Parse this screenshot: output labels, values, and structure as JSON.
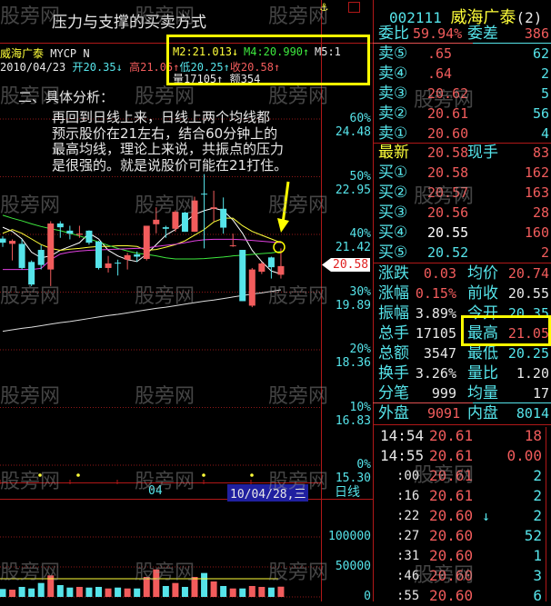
{
  "watermark": "股旁网",
  "title": "压力与支撑的买卖方式",
  "header": {
    "stock_name": "威海广泰",
    "indicator": "MYCP N",
    "m2": "M2:21.013↓",
    "m4": "M4:20.990↑",
    "m5": "M5:1",
    "date": "2010/04/23",
    "open_label": "开",
    "open": "20.35↓",
    "high_label": "高",
    "high": "21.05↑",
    "low_label": "低",
    "low": "20.25↑",
    "close_label": "收",
    "close": "20.58↑",
    "vol_label": "量",
    "vol": "17105↑",
    "amount_label": "额",
    "amount": "354"
  },
  "annotation": {
    "heading": "二、具体分析：",
    "lines": [
      "再回到日线上来，日线上两个均线都",
      "预示股价在21左右，结合60分钟上的",
      "最高均线，理论上来说，共振点的压力",
      "是很强的。就是说股价可能在21打住。"
    ]
  },
  "price_axis": [
    {
      "pct": "60%",
      "price": "24.48",
      "value": 24.48
    },
    {
      "pct": "50%",
      "price": "22.95",
      "value": 22.95
    },
    {
      "pct": "40%",
      "price": "21.42",
      "value": 21.42
    },
    {
      "pct": "30%",
      "price": "19.89",
      "value": 19.89
    },
    {
      "pct": "20%",
      "price": "18.36",
      "value": 18.36
    },
    {
      "pct": "10%",
      "price": "16.83",
      "value": 16.83
    },
    {
      "pct": "0%",
      "price": "15.30",
      "value": 15.3
    }
  ],
  "current_price_tag": "20.58",
  "date_axis": {
    "month": "04",
    "cursor_date": "10/04/28,三",
    "period": "日线"
  },
  "volume_axis": [
    {
      "label": "100000",
      "value": 100000
    },
    {
      "label": "50000",
      "value": 50000
    },
    {
      "label": "0",
      "value": 0
    }
  ],
  "colors": {
    "up": "#f25c5c",
    "down": "#56e4ea",
    "ma_white": "#ffffff",
    "ma_yellow": "#ffff3a",
    "ma_green": "#3ee83e",
    "ma_magenta": "#e040e0",
    "highlight": "#ffff00"
  },
  "candles": [
    [
      21.31,
      21.37,
      21.09,
      21.2
    ],
    [
      21.17,
      21.29,
      20.73,
      21.25
    ],
    [
      21.17,
      21.29,
      20.49,
      20.53
    ],
    [
      20.69,
      20.73,
      20.05,
      20.09
    ],
    [
      21.01,
      21.13,
      20.49,
      20.61
    ],
    [
      20.49,
      21.77,
      20.05,
      21.71
    ],
    [
      21.71,
      21.77,
      21.33,
      21.61
    ],
    [
      21.52,
      21.65,
      21.29,
      21.44
    ],
    [
      21.41,
      21.65,
      21.33,
      21.44
    ],
    [
      21.52,
      21.53,
      21.15,
      21.2
    ],
    [
      21.23,
      21.25,
      20.49,
      20.53
    ],
    [
      20.53,
      20.85,
      20.41,
      20.65
    ],
    [
      20.67,
      20.75,
      20.33,
      20.65
    ],
    [
      20.75,
      20.93,
      20.49,
      20.87
    ],
    [
      20.89,
      20.97,
      20.69,
      20.83
    ],
    [
      20.77,
      21.65,
      20.73,
      21.65
    ],
    [
      21.69,
      22.14,
      21.45,
      21.81
    ],
    [
      21.61,
      21.65,
      21.33,
      21.57
    ],
    [
      21.57,
      22.06,
      21.49,
      22.02
    ],
    [
      22.0,
      22.02,
      21.49,
      21.49
    ],
    [
      21.49,
      22.42,
      21.49,
      22.32
    ],
    [
      22.5,
      23.02,
      21.05,
      22.48
    ],
    [
      22.1,
      22.58,
      21.77,
      22.14
    ],
    [
      22.1,
      22.4,
      21.44,
      21.6
    ],
    [
      21.12,
      21.44,
      21.09,
      21.13
    ],
    [
      21.01,
      21.01,
      19.65,
      19.65
    ],
    [
      19.53,
      20.53,
      19.49,
      20.49
    ],
    [
      20.43,
      20.69,
      20.37,
      20.65
    ],
    [
      20.81,
      20.83,
      20.25,
      20.55
    ],
    [
      20.35,
      21.05,
      20.25,
      20.58
    ]
  ],
  "ma_lines": {
    "white": [
      21.61,
      21.5,
      21.3,
      20.95,
      20.8,
      20.85,
      21.0,
      21.1,
      21.2,
      21.45,
      21.3,
      21.0,
      20.85,
      20.75,
      20.7,
      20.9,
      21.15,
      21.4,
      21.55,
      21.75,
      21.95,
      22.05,
      22.12,
      22.05,
      21.8,
      21.45,
      21.0,
      20.7,
      20.45,
      20.37
    ],
    "yellow": [
      21.45,
      21.55,
      21.45,
      21.3,
      21.15,
      21.05,
      21.0,
      21.03,
      21.05,
      21.08,
      21.1,
      21.1,
      21.12,
      21.12,
      21.1,
      21.0,
      21.02,
      21.08,
      21.15,
      21.25,
      21.4,
      21.55,
      21.75,
      21.85,
      21.85,
      21.65,
      21.5,
      21.4,
      21.3,
      21.2
    ],
    "green": [
      21.93,
      21.85,
      21.78,
      21.7,
      21.63,
      21.57,
      21.52,
      21.45,
      21.38,
      21.3,
      21.22,
      21.13,
      21.05,
      20.98,
      20.92,
      20.89,
      20.85,
      20.8,
      20.77,
      20.77,
      20.77,
      20.78,
      20.8,
      20.82,
      20.85,
      20.87,
      20.89,
      20.91,
      20.93,
      20.97
    ],
    "magenta": [
      20.49,
      20.49,
      20.49,
      20.49,
      20.52,
      20.75,
      20.9,
      20.95,
      20.98,
      21.0,
      21.01,
      21.02,
      21.03,
      21.04,
      21.05,
      21.06,
      21.1,
      21.13,
      21.16,
      21.2,
      21.25,
      21.28,
      21.29,
      21.29,
      21.29,
      21.28,
      21.26,
      21.24,
      21.22,
      21.2
    ],
    "long_white": [
      18.85,
      18.89,
      18.93,
      18.96,
      19.0,
      19.04,
      19.08,
      19.11,
      19.15,
      19.19,
      19.23,
      19.27,
      19.3,
      19.34,
      19.38,
      19.42,
      19.46,
      19.49,
      19.53,
      19.57,
      19.61,
      19.65,
      19.68,
      19.72,
      19.76,
      19.8,
      19.84,
      19.87,
      19.91,
      19.95
    ]
  },
  "volumes": [
    13200,
    12100,
    16700,
    14100,
    23200,
    35900,
    19700,
    15600,
    16700,
    15600,
    16700,
    14100,
    15600,
    14100,
    14100,
    33300,
    45900,
    18200,
    23200,
    16700,
    33300,
    39900,
    25800,
    18200,
    14100,
    14100,
    18200,
    16700,
    15600,
    17105
  ],
  "volume_ma": 30300,
  "quote": {
    "code": "002111",
    "name": "威海广泰",
    "suffix": "(2)",
    "weibi_label": "委比",
    "weibi": "59.94%",
    "weicha_label": "委差",
    "weicha": "386",
    "sell": [
      {
        "label": "卖⑤",
        "price": ".65",
        "vol": "62"
      },
      {
        "label": "卖④",
        "price": ".64",
        "vol": "2"
      },
      {
        "label": "卖③",
        "price": "20.62",
        "vol": "5"
      },
      {
        "label": "卖②",
        "price": "20.61",
        "vol": "56"
      },
      {
        "label": "卖①",
        "price": "20.60",
        "vol": "4"
      }
    ],
    "latest_label": "最新",
    "latest": "20.58",
    "now_vol_label": "现手",
    "now_vol": "83",
    "buy": [
      {
        "label": "买①",
        "price": "20.58",
        "vol": "162",
        "color": "#f25c5c"
      },
      {
        "label": "买②",
        "price": "20.57",
        "vol": "163",
        "color": "#f25c5c"
      },
      {
        "label": "买③",
        "price": "20.56",
        "vol": "28",
        "color": "#f25c5c"
      },
      {
        "label": "买④",
        "price": "20.55",
        "vol": "160",
        "color": "#ffffff"
      },
      {
        "label": "买⑤",
        "price": "20.52",
        "vol": "2",
        "color": "#56e4ea"
      }
    ],
    "stats": [
      {
        "l1": "涨跌",
        "v1": "0.03",
        "c1": "#f25c5c",
        "l2": "均价",
        "v2": "20.74",
        "c2": "#f25c5c"
      },
      {
        "l1": "涨幅",
        "v1": "0.15%",
        "c1": "#f25c5c",
        "l2": "前收",
        "v2": "20.55",
        "c2": "#e8e8e8"
      },
      {
        "l1": "振幅",
        "v1": "3.89%",
        "c1": "#e8e8e8",
        "l2": "今开",
        "v2": "20.35",
        "c2": "#56e4ea"
      },
      {
        "l1": "总手",
        "v1": "17105",
        "c1": "#e8e8e8",
        "l2": "最高",
        "v2": "21.05",
        "c2": "#f25c5c"
      },
      {
        "l1": "总额",
        "v1": "3547",
        "c1": "#e8e8e8",
        "l2": "最低",
        "v2": "20.25",
        "c2": "#56e4ea"
      },
      {
        "l1": "换手",
        "v1": "3.26%",
        "c1": "#e8e8e8",
        "l2": "量比",
        "v2": "1.20",
        "c2": "#e8e8e8"
      },
      {
        "l1": "分笔",
        "v1": "999",
        "c1": "#e8e8e8",
        "l2": "均量",
        "v2": "17",
        "c2": "#e8e8e8"
      }
    ],
    "outer_label": "外盘",
    "outer": "9091",
    "inner_label": "内盘",
    "inner": "8014",
    "ticks": [
      {
        "time": "14:54",
        "price": "20.61",
        "vol": "18",
        "vc": "#f25c5c",
        "arrow": ""
      },
      {
        "time": "14:55",
        "price": "20.61",
        "vol": "0.00",
        "vc": "#f25c5c",
        "arrow": ""
      },
      {
        "time": ":00",
        "price": "20.61",
        "vol": "2",
        "vc": "#56e4ea",
        "arrow": ""
      },
      {
        "time": ":16",
        "price": "20.61",
        "vol": "2",
        "vc": "#56e4ea",
        "arrow": ""
      },
      {
        "time": ":22",
        "price": "20.60",
        "vol": "2",
        "vc": "#56e4ea",
        "arrow": "↓"
      },
      {
        "time": ":27",
        "price": "20.60",
        "vol": "52",
        "vc": "#56e4ea",
        "arrow": ""
      },
      {
        "time": ":31",
        "price": "20.60",
        "vol": "1",
        "vc": "#56e4ea",
        "arrow": ""
      },
      {
        "time": ":46",
        "price": "20.60",
        "vol": "3",
        "vc": "#56e4ea",
        "arrow": ""
      },
      {
        "time": ":55",
        "price": "20.60",
        "vol": "6",
        "vc": "#56e4ea",
        "arrow": ""
      }
    ]
  }
}
